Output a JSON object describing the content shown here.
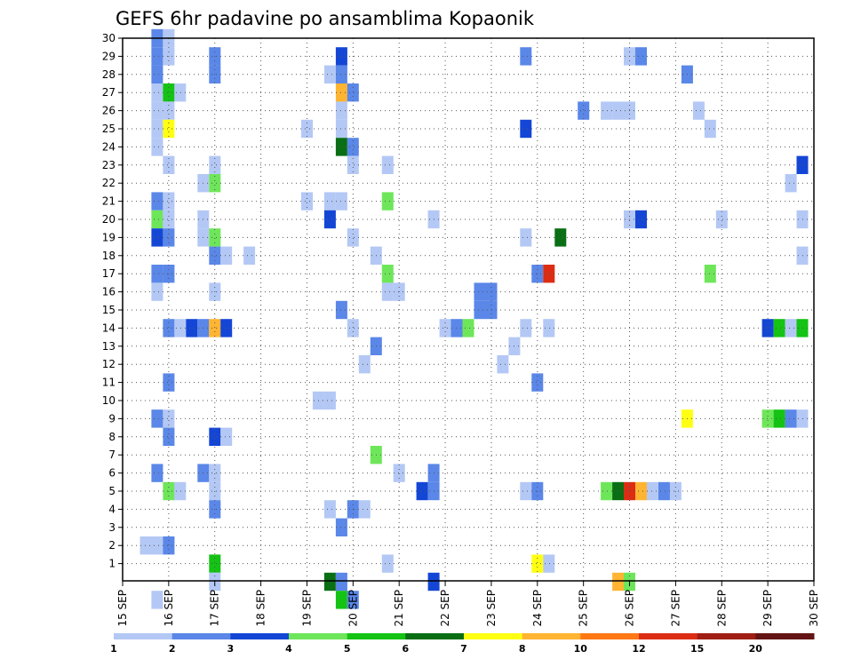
{
  "chart_data": {
    "type": "heatmap",
    "title": "GEFS 6hr padavine po ansamblima Kopaonik",
    "xlabel": "",
    "ylabel": "",
    "x_tick_labels": [
      "15 SEP",
      "16 SEP",
      "17 SEP",
      "18 SEP",
      "19 SEP",
      "20 SEP",
      "21 SEP",
      "22 SEP",
      "23 SEP",
      "24 SEP",
      "25 SEP",
      "26 SEP",
      "27 SEP",
      "28 SEP",
      "29 SEP",
      "30 SEP"
    ],
    "y_tick_labels": [
      "1",
      "2",
      "3",
      "4",
      "5",
      "6",
      "7",
      "8",
      "9",
      "10",
      "11",
      "12",
      "13",
      "14",
      "15",
      "16",
      "17",
      "18",
      "19",
      "20",
      "21",
      "22",
      "23",
      "24",
      "25",
      "26",
      "27",
      "28",
      "29",
      "30"
    ],
    "x_range_days": [
      0,
      15
    ],
    "time_step_hours": 6,
    "grid": true,
    "legend_position": "bottom",
    "colorbar": {
      "colors": [
        "#b4c8f5",
        "#5a87e8",
        "#1446d6",
        "#6ee65a",
        "#14c314",
        "#0a6e14",
        "#ffff14",
        "#ffb432",
        "#ff7814",
        "#dc2d14",
        "#a01e14",
        "#641414"
      ],
      "labels": [
        "1",
        "2",
        "3",
        "4",
        "5",
        "6",
        "7",
        "8",
        "10",
        "12",
        "15",
        "20"
      ]
    },
    "cells_note": "each cell = [time_index (6h steps from 15 SEP 00Z), member, color_class 0-11]",
    "cells": [
      [
        3,
        30,
        1
      ],
      [
        4,
        30,
        0
      ],
      [
        3,
        29,
        1
      ],
      [
        4,
        29,
        0
      ],
      [
        8,
        29,
        1
      ],
      [
        19,
        29,
        2
      ],
      [
        35,
        29,
        1
      ],
      [
        44,
        29,
        0
      ],
      [
        45,
        29,
        1
      ],
      [
        3,
        28,
        1
      ],
      [
        8,
        28,
        1
      ],
      [
        18,
        28,
        0
      ],
      [
        19,
        28,
        1
      ],
      [
        49,
        28,
        1
      ],
      [
        3,
        27,
        0
      ],
      [
        4,
        27,
        4
      ],
      [
        5,
        27,
        0
      ],
      [
        19,
        27,
        7
      ],
      [
        20,
        27,
        1
      ],
      [
        3,
        26,
        0
      ],
      [
        4,
        26,
        0
      ],
      [
        19,
        26,
        0
      ],
      [
        40,
        26,
        1
      ],
      [
        42,
        26,
        0
      ],
      [
        43,
        26,
        0
      ],
      [
        44,
        26,
        0
      ],
      [
        50,
        26,
        0
      ],
      [
        3,
        25,
        0
      ],
      [
        4,
        25,
        6
      ],
      [
        16,
        25,
        0
      ],
      [
        19,
        25,
        0
      ],
      [
        35,
        25,
        2
      ],
      [
        51,
        25,
        0
      ],
      [
        3,
        24,
        0
      ],
      [
        19,
        24,
        5
      ],
      [
        20,
        24,
        1
      ],
      [
        4,
        23,
        0
      ],
      [
        8,
        23,
        0
      ],
      [
        20,
        23,
        0
      ],
      [
        23,
        23,
        0
      ],
      [
        59,
        23,
        2
      ],
      [
        7,
        22,
        0
      ],
      [
        8,
        22,
        3
      ],
      [
        58,
        22,
        0
      ],
      [
        3,
        21,
        1
      ],
      [
        4,
        21,
        0
      ],
      [
        16,
        21,
        0
      ],
      [
        18,
        21,
        0
      ],
      [
        19,
        21,
        0
      ],
      [
        23,
        21,
        3
      ],
      [
        3,
        20,
        3
      ],
      [
        4,
        20,
        0
      ],
      [
        7,
        20,
        0
      ],
      [
        18,
        20,
        2
      ],
      [
        27,
        20,
        0
      ],
      [
        44,
        20,
        0
      ],
      [
        45,
        20,
        2
      ],
      [
        52,
        20,
        0
      ],
      [
        59,
        20,
        0
      ],
      [
        3,
        19,
        2
      ],
      [
        4,
        19,
        1
      ],
      [
        7,
        19,
        0
      ],
      [
        8,
        19,
        3
      ],
      [
        20,
        19,
        0
      ],
      [
        35,
        19,
        0
      ],
      [
        38,
        19,
        5
      ],
      [
        8,
        18,
        1
      ],
      [
        9,
        18,
        0
      ],
      [
        11,
        18,
        0
      ],
      [
        22,
        18,
        0
      ],
      [
        59,
        18,
        0
      ],
      [
        3,
        17,
        1
      ],
      [
        4,
        17,
        1
      ],
      [
        23,
        17,
        3
      ],
      [
        36,
        17,
        1
      ],
      [
        37,
        17,
        9
      ],
      [
        51,
        17,
        3
      ],
      [
        3,
        16,
        0
      ],
      [
        8,
        16,
        0
      ],
      [
        23,
        16,
        0
      ],
      [
        24,
        16,
        0
      ],
      [
        31,
        16,
        1
      ],
      [
        32,
        16,
        1
      ],
      [
        19,
        15,
        1
      ],
      [
        31,
        15,
        1
      ],
      [
        32,
        15,
        1
      ],
      [
        4,
        14,
        1
      ],
      [
        5,
        14,
        0
      ],
      [
        6,
        14,
        2
      ],
      [
        7,
        14,
        1
      ],
      [
        8,
        14,
        7
      ],
      [
        9,
        14,
        2
      ],
      [
        20,
        14,
        0
      ],
      [
        28,
        14,
        0
      ],
      [
        29,
        14,
        1
      ],
      [
        30,
        14,
        3
      ],
      [
        35,
        14,
        0
      ],
      [
        37,
        14,
        0
      ],
      [
        56,
        14,
        2
      ],
      [
        57,
        14,
        4
      ],
      [
        58,
        14,
        0
      ],
      [
        59,
        14,
        4
      ],
      [
        22,
        13,
        1
      ],
      [
        34,
        13,
        0
      ],
      [
        21,
        12,
        0
      ],
      [
        33,
        12,
        0
      ],
      [
        4,
        11,
        1
      ],
      [
        36,
        11,
        1
      ],
      [
        17,
        10,
        0
      ],
      [
        18,
        10,
        0
      ],
      [
        3,
        9,
        1
      ],
      [
        4,
        9,
        0
      ],
      [
        49,
        9,
        6
      ],
      [
        56,
        9,
        3
      ],
      [
        57,
        9,
        4
      ],
      [
        58,
        9,
        1
      ],
      [
        59,
        9,
        0
      ],
      [
        4,
        8,
        1
      ],
      [
        8,
        8,
        2
      ],
      [
        9,
        8,
        0
      ],
      [
        22,
        7,
        3
      ],
      [
        3,
        6,
        1
      ],
      [
        7,
        6,
        1
      ],
      [
        8,
        6,
        0
      ],
      [
        24,
        6,
        0
      ],
      [
        27,
        6,
        1
      ],
      [
        4,
        5,
        3
      ],
      [
        5,
        5,
        0
      ],
      [
        8,
        5,
        0
      ],
      [
        26,
        5,
        2
      ],
      [
        27,
        5,
        1
      ],
      [
        35,
        5,
        0
      ],
      [
        36,
        5,
        1
      ],
      [
        42,
        5,
        3
      ],
      [
        43,
        5,
        5
      ],
      [
        44,
        5,
        9
      ],
      [
        45,
        5,
        7
      ],
      [
        46,
        5,
        0
      ],
      [
        47,
        5,
        1
      ],
      [
        48,
        5,
        0
      ],
      [
        8,
        4,
        1
      ],
      [
        18,
        4,
        0
      ],
      [
        20,
        4,
        1
      ],
      [
        21,
        4,
        0
      ],
      [
        19,
        3,
        1
      ],
      [
        2,
        2,
        0
      ],
      [
        3,
        2,
        0
      ],
      [
        4,
        2,
        1
      ],
      [
        8,
        1,
        4
      ],
      [
        23,
        1,
        0
      ],
      [
        36,
        1,
        6
      ],
      [
        37,
        1,
        0
      ],
      [
        8,
        0,
        0
      ],
      [
        18,
        0,
        5
      ],
      [
        19,
        0,
        1
      ],
      [
        27,
        0,
        2
      ],
      [
        43,
        0,
        7
      ],
      [
        44,
        0,
        3
      ],
      [
        3,
        -1,
        0
      ],
      [
        19,
        -1,
        4
      ],
      [
        20,
        -1,
        1
      ]
    ]
  }
}
